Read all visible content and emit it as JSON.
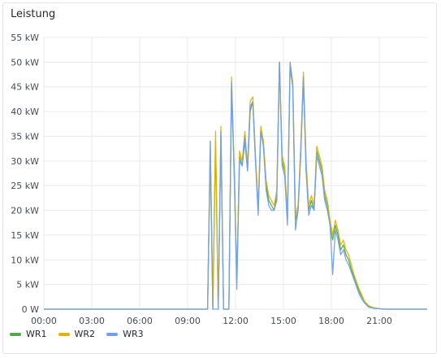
{
  "panel": {
    "title": "Leistung"
  },
  "chart_data": {
    "type": "line",
    "title": "Leistung",
    "ylim": [
      0,
      55
    ],
    "xlim": [
      "00:00",
      "24:00"
    ],
    "y_ticks": [
      "0 W",
      "5 kW",
      "10 kW",
      "15 kW",
      "20 kW",
      "25 kW",
      "30 kW",
      "35 kW",
      "40 kW",
      "45 kW",
      "50 kW",
      "55 kW"
    ],
    "x_ticks": [
      "00:00",
      "03:00",
      "06:00",
      "09:00",
      "12:00",
      "15:00",
      "18:00",
      "21:00"
    ],
    "grid": true,
    "legend": "bottom-left",
    "x": [
      "00:00",
      "10:15",
      "10:25",
      "10:35",
      "10:45",
      "10:55",
      "11:05",
      "11:15",
      "11:25",
      "11:35",
      "11:45",
      "11:55",
      "12:05",
      "12:15",
      "12:25",
      "12:35",
      "12:45",
      "12:55",
      "13:05",
      "13:15",
      "13:25",
      "13:35",
      "13:45",
      "13:55",
      "14:05",
      "14:15",
      "14:25",
      "14:35",
      "14:45",
      "14:55",
      "15:05",
      "15:15",
      "15:25",
      "15:35",
      "15:45",
      "15:55",
      "16:05",
      "16:15",
      "16:25",
      "16:35",
      "16:45",
      "16:55",
      "17:05",
      "17:15",
      "17:25",
      "17:35",
      "17:45",
      "17:55",
      "18:05",
      "18:15",
      "18:25",
      "18:35",
      "18:45",
      "18:55",
      "19:05",
      "19:15",
      "19:25",
      "19:35",
      "19:45",
      "19:55",
      "20:05",
      "20:20",
      "20:40",
      "21:00",
      "21:20",
      "21:40",
      "22:00",
      "23:59"
    ],
    "series": [
      {
        "name": "WR1",
        "color": "#56a64b",
        "values": [
          0,
          0,
          32,
          0,
          34,
          0,
          35,
          0,
          0,
          0,
          45,
          27,
          6,
          31,
          29,
          34,
          28,
          40,
          42,
          30,
          20,
          36,
          33,
          25,
          22,
          21,
          20,
          23,
          50,
          30,
          28,
          18,
          49,
          45,
          18,
          20,
          32,
          47,
          28,
          20,
          22,
          20,
          32,
          30,
          28,
          23,
          21,
          17,
          14,
          17,
          15,
          12,
          13,
          11,
          10,
          8,
          6.5,
          5,
          3.5,
          2.5,
          1.5,
          0.6,
          0.2,
          0.1,
          0,
          0,
          0,
          0
        ]
      },
      {
        "name": "WR2",
        "color": "#e0b400",
        "values": [
          0,
          0,
          34,
          0,
          36,
          0,
          37,
          0,
          0,
          0,
          47,
          28,
          6,
          32,
          30,
          36,
          29,
          42,
          43,
          31,
          21,
          37,
          34,
          26,
          23,
          22,
          21,
          24,
          50,
          31,
          29,
          19,
          50,
          46,
          19,
          21,
          33,
          48,
          30,
          21,
          23,
          21,
          33,
          31,
          29,
          24,
          22,
          18,
          15,
          18,
          16,
          13,
          14,
          12,
          11,
          9,
          7,
          5.5,
          4,
          2.8,
          1.6,
          0.7,
          0.3,
          0.1,
          0,
          0,
          0,
          0
        ]
      },
      {
        "name": "WR3",
        "color": "#6e9ff2",
        "values": [
          0,
          0,
          34,
          0,
          0,
          0,
          36,
          0,
          0,
          0,
          46,
          28,
          4,
          30,
          29,
          35,
          28,
          41,
          42,
          30,
          19,
          36,
          33,
          24,
          21,
          20,
          20,
          22,
          50,
          29,
          27,
          17,
          50,
          45,
          16,
          20,
          31,
          47,
          28,
          19,
          21,
          20,
          31,
          29,
          27,
          22,
          20,
          17,
          7,
          16,
          14,
          11,
          12,
          10,
          9,
          7.5,
          6,
          4.5,
          3,
          2,
          1.2,
          0.4,
          0.2,
          0.1,
          0,
          0,
          0,
          0
        ]
      }
    ]
  }
}
